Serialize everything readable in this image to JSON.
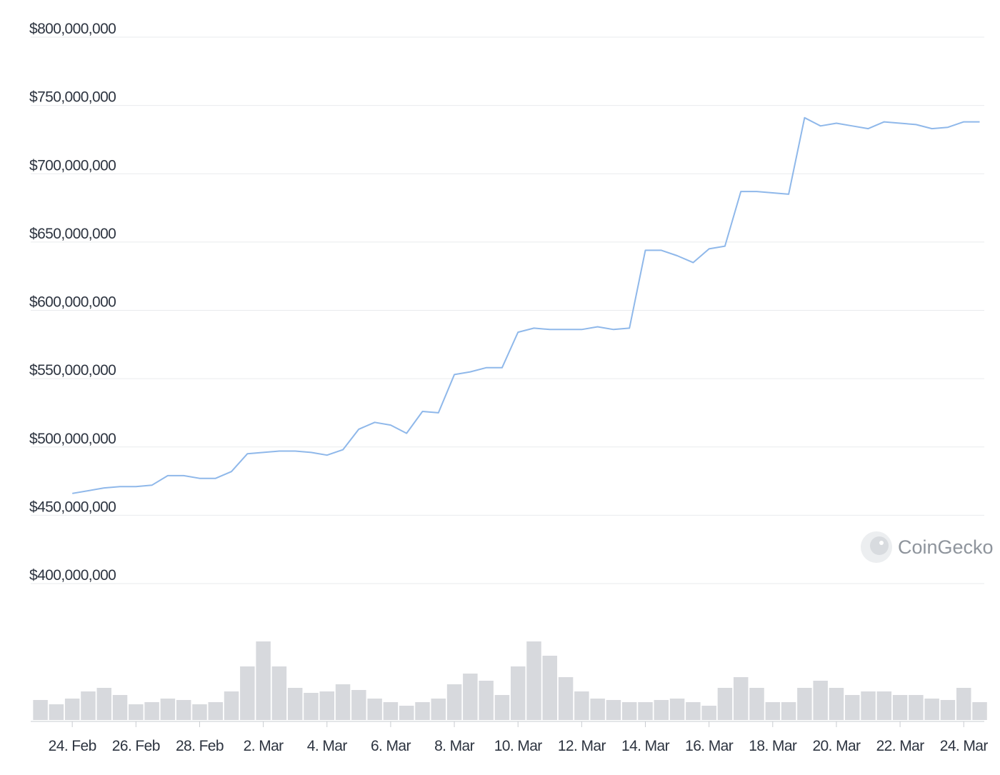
{
  "chart_data": {
    "type": "line",
    "categories": [
      null,
      null,
      "24. Feb",
      null,
      null,
      null,
      "26. Feb",
      null,
      null,
      null,
      "28. Feb",
      null,
      null,
      null,
      "2. Mar",
      null,
      null,
      null,
      "4. Mar",
      null,
      null,
      null,
      "6. Mar",
      null,
      null,
      null,
      "8. Mar",
      null,
      null,
      null,
      "10. Mar",
      null,
      null,
      null,
      "12. Mar",
      null,
      null,
      null,
      "14. Mar",
      null,
      null,
      null,
      "16. Mar",
      null,
      null,
      null,
      "18. Mar",
      null,
      null,
      null,
      "20. Mar",
      null,
      null,
      null,
      "22. Mar",
      null,
      null,
      null,
      "24. Mar",
      null
    ],
    "series": [
      {
        "color": "#8fb8ea",
        "values": [
          null,
          null,
          466000000,
          468000000,
          470000000,
          471000000,
          471000000,
          472000000,
          479000000,
          479000000,
          477000000,
          477000000,
          482000000,
          495000000,
          496000000,
          497000000,
          497000000,
          496000000,
          494000000,
          498000000,
          513000000,
          518000000,
          516000000,
          510000000,
          526000000,
          525000000,
          553000000,
          555000000,
          558000000,
          558000000,
          584000000,
          587000000,
          586000000,
          586000000,
          586000000,
          588000000,
          586000000,
          587000000,
          644000000,
          644000000,
          640000000,
          635000000,
          645000000,
          647000000,
          687000000,
          687000000,
          686000000,
          685000000,
          741000000,
          735000000,
          737000000,
          735000000,
          733000000,
          738000000,
          737000000,
          736000000,
          733000000,
          734000000,
          738000000,
          738000000
        ]
      },
      {
        "type": "bar",
        "axis": "y2",
        "color": "#d7d9dd",
        "values": [
          28,
          22,
          30,
          40,
          45,
          35,
          22,
          25,
          30,
          28,
          22,
          25,
          40,
          75,
          110,
          75,
          45,
          38,
          40,
          50,
          42,
          30,
          25,
          20,
          25,
          30,
          50,
          65,
          55,
          35,
          75,
          110,
          90,
          60,
          40,
          30,
          28,
          25,
          25,
          28,
          30,
          25,
          20,
          45,
          60,
          45,
          25,
          25,
          45,
          55,
          45,
          35,
          40,
          40,
          35,
          35,
          30,
          28,
          45,
          25
        ]
      }
    ],
    "ylim": [
      400000000,
      800000000
    ],
    "yticks": [
      {
        "value": 400000000,
        "label": "$400,000,000"
      },
      {
        "value": 450000000,
        "label": "$450,000,000"
      },
      {
        "value": 500000000,
        "label": "$500,000,000"
      },
      {
        "value": 550000000,
        "label": "$550,000,000"
      },
      {
        "value": 600000000,
        "label": "$600,000,000"
      },
      {
        "value": 650000000,
        "label": "$650,000,000"
      },
      {
        "value": 700000000,
        "label": "$700,000,000"
      },
      {
        "value": 750000000,
        "label": "$750,000,000"
      },
      {
        "value": 800000000,
        "label": "$800,000,000"
      }
    ],
    "y2lim": [
      0,
      120
    ],
    "grid": true,
    "watermark": "CoinGecko"
  }
}
